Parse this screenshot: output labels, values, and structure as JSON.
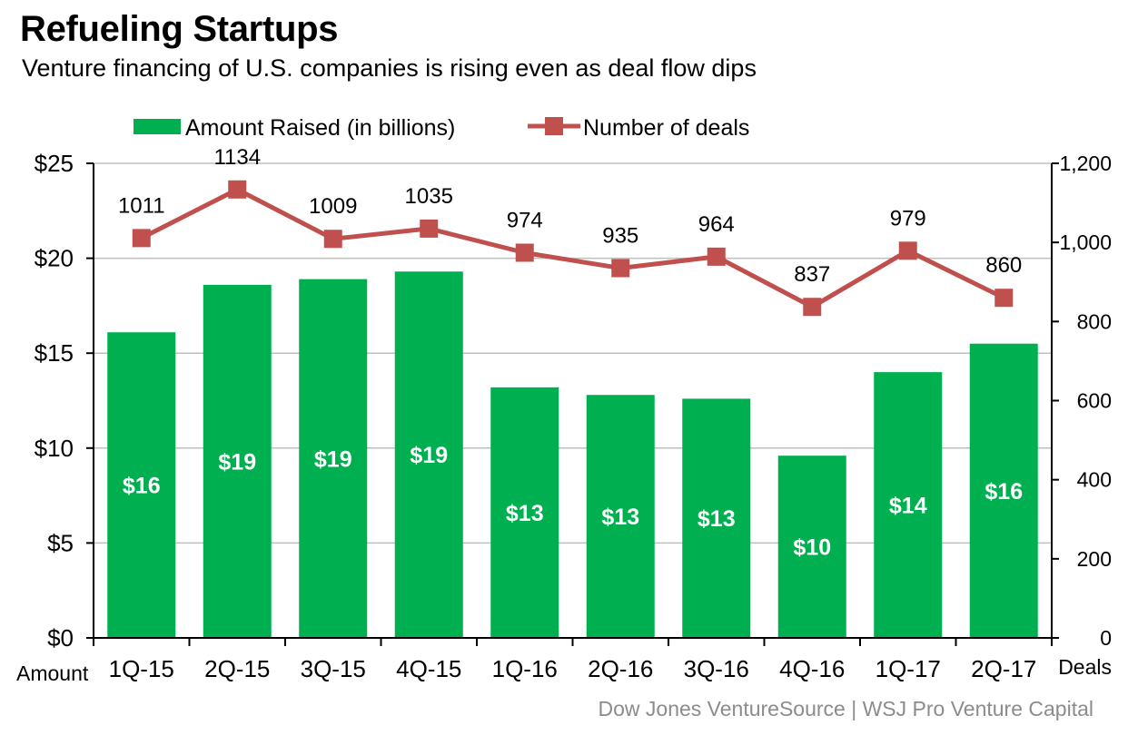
{
  "header": {
    "title": "Refueling Startups",
    "subtitle": "Venture financing of U.S. companies is rising even as deal flow dips"
  },
  "source": "Dow Jones VentureSource  |  WSJ Pro Venture Capital",
  "chart_data": {
    "type": "bar",
    "categories": [
      "1Q-15",
      "2Q-15",
      "3Q-15",
      "4Q-15",
      "1Q-16",
      "2Q-16",
      "3Q-16",
      "4Q-16",
      "1Q-17",
      "2Q-17"
    ],
    "series": [
      {
        "name": "Amount Raised (in billions)",
        "type": "bar",
        "axis": "left",
        "color": "#00b050",
        "values": [
          16.1,
          18.6,
          18.9,
          19.3,
          13.2,
          12.8,
          12.6,
          9.6,
          14.0,
          15.5
        ],
        "labels": [
          "$16",
          "$19",
          "$19",
          "$19",
          "$13",
          "$13",
          "$13",
          "$10",
          "$14",
          "$16"
        ]
      },
      {
        "name": "Number of deals",
        "type": "line",
        "axis": "right",
        "color": "#c0504d",
        "values": [
          1011,
          1134,
          1009,
          1035,
          974,
          935,
          964,
          837,
          979,
          860
        ],
        "labels": [
          "1011",
          "1134",
          "1009",
          "1035",
          "974",
          "935",
          "964",
          "837",
          "979",
          "860"
        ]
      }
    ],
    "left_axis": {
      "label": "Amount",
      "ylim": [
        0,
        25
      ],
      "ticks": [
        0,
        5,
        10,
        15,
        20,
        25
      ],
      "tick_labels": [
        "$0",
        "$5",
        "$10",
        "$15",
        "$20",
        "$25"
      ]
    },
    "right_axis": {
      "label": "Deals",
      "ylim": [
        0,
        1200
      ],
      "ticks": [
        0,
        200,
        400,
        600,
        800,
        1000,
        1200
      ],
      "tick_labels": [
        "0",
        "200",
        "400",
        "600",
        "800",
        "1,000",
        "1,200"
      ]
    },
    "grid": true,
    "legend": "top-center"
  }
}
